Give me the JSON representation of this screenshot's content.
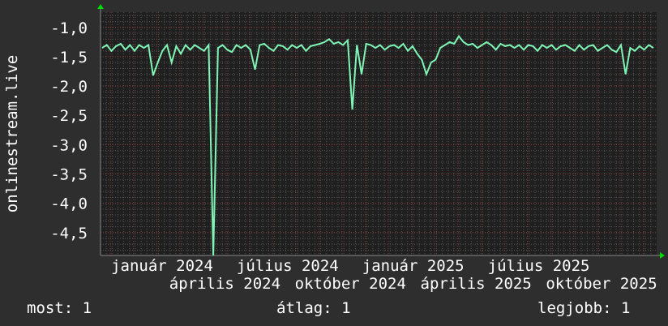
{
  "chart_data": {
    "type": "line",
    "ylabel": "onlinestream.live",
    "ylim": [
      -4.89,
      -0.74
    ],
    "yticks": [
      "-1,0",
      "-1,5",
      "-2,0",
      "-2,5",
      "-3,0",
      "-3,5",
      "-4,0",
      "-4,5"
    ],
    "ytick_values": [
      -1.0,
      -1.5,
      -2.0,
      -2.5,
      -3.0,
      -3.5,
      -4.0,
      -4.5
    ],
    "xticks": [
      "január 2024",
      "április 2024",
      "július 2024",
      "október 2024",
      "január 2025",
      "április 2025",
      "július 2025",
      "október 2025"
    ],
    "grid": true,
    "series": [
      {
        "color": "#7ff5b5",
        "values": [
          -1.35,
          -1.3,
          -1.4,
          -1.32,
          -1.28,
          -1.38,
          -1.3,
          -1.4,
          -1.3,
          -1.35,
          -1.3,
          -1.82,
          -1.6,
          -1.4,
          -1.3,
          -1.6,
          -1.32,
          -1.45,
          -1.3,
          -1.38,
          -1.3,
          -1.35,
          -1.4,
          -1.3,
          -4.9,
          -1.35,
          -1.3,
          -1.38,
          -1.42,
          -1.3,
          -1.35,
          -1.3,
          -1.38,
          -1.72,
          -1.3,
          -1.28,
          -1.35,
          -1.4,
          -1.3,
          -1.32,
          -1.38,
          -1.3,
          -1.35,
          -1.3,
          -1.4,
          -1.32,
          -1.3,
          -1.28,
          -1.25,
          -1.2,
          -1.28,
          -1.25,
          -1.3,
          -1.22,
          -2.4,
          -1.3,
          -1.8,
          -1.28,
          -1.3,
          -1.35,
          -1.3,
          -1.38,
          -1.32,
          -1.3,
          -1.35,
          -1.28,
          -1.4,
          -1.32,
          -1.45,
          -1.55,
          -1.8,
          -1.6,
          -1.55,
          -1.35,
          -1.3,
          -1.25,
          -1.28,
          -1.15,
          -1.25,
          -1.3,
          -1.28,
          -1.35,
          -1.3,
          -1.25,
          -1.3,
          -1.38,
          -1.28,
          -1.32,
          -1.3,
          -1.35,
          -1.3,
          -1.38,
          -1.3,
          -1.32,
          -1.4,
          -1.3,
          -1.35,
          -1.3,
          -1.38,
          -1.32,
          -1.3,
          -1.35,
          -1.4,
          -1.3,
          -1.38,
          -1.32,
          -1.3,
          -1.4,
          -1.35,
          -1.3,
          -1.38,
          -1.42,
          -1.3,
          -1.8,
          -1.35,
          -1.4,
          -1.32,
          -1.38,
          -1.3,
          -1.35
        ]
      }
    ]
  },
  "legend": {
    "current": "most: 1",
    "average": "átlag: 1",
    "max": "legjobb: 1"
  },
  "colors": {
    "background": "#2e2e2e",
    "plot": "#1f1f1f",
    "line": "#7ff5b5",
    "major_grid": "#8a3a3a",
    "minor_grid": "#555555",
    "arrow": "#00dd00"
  }
}
